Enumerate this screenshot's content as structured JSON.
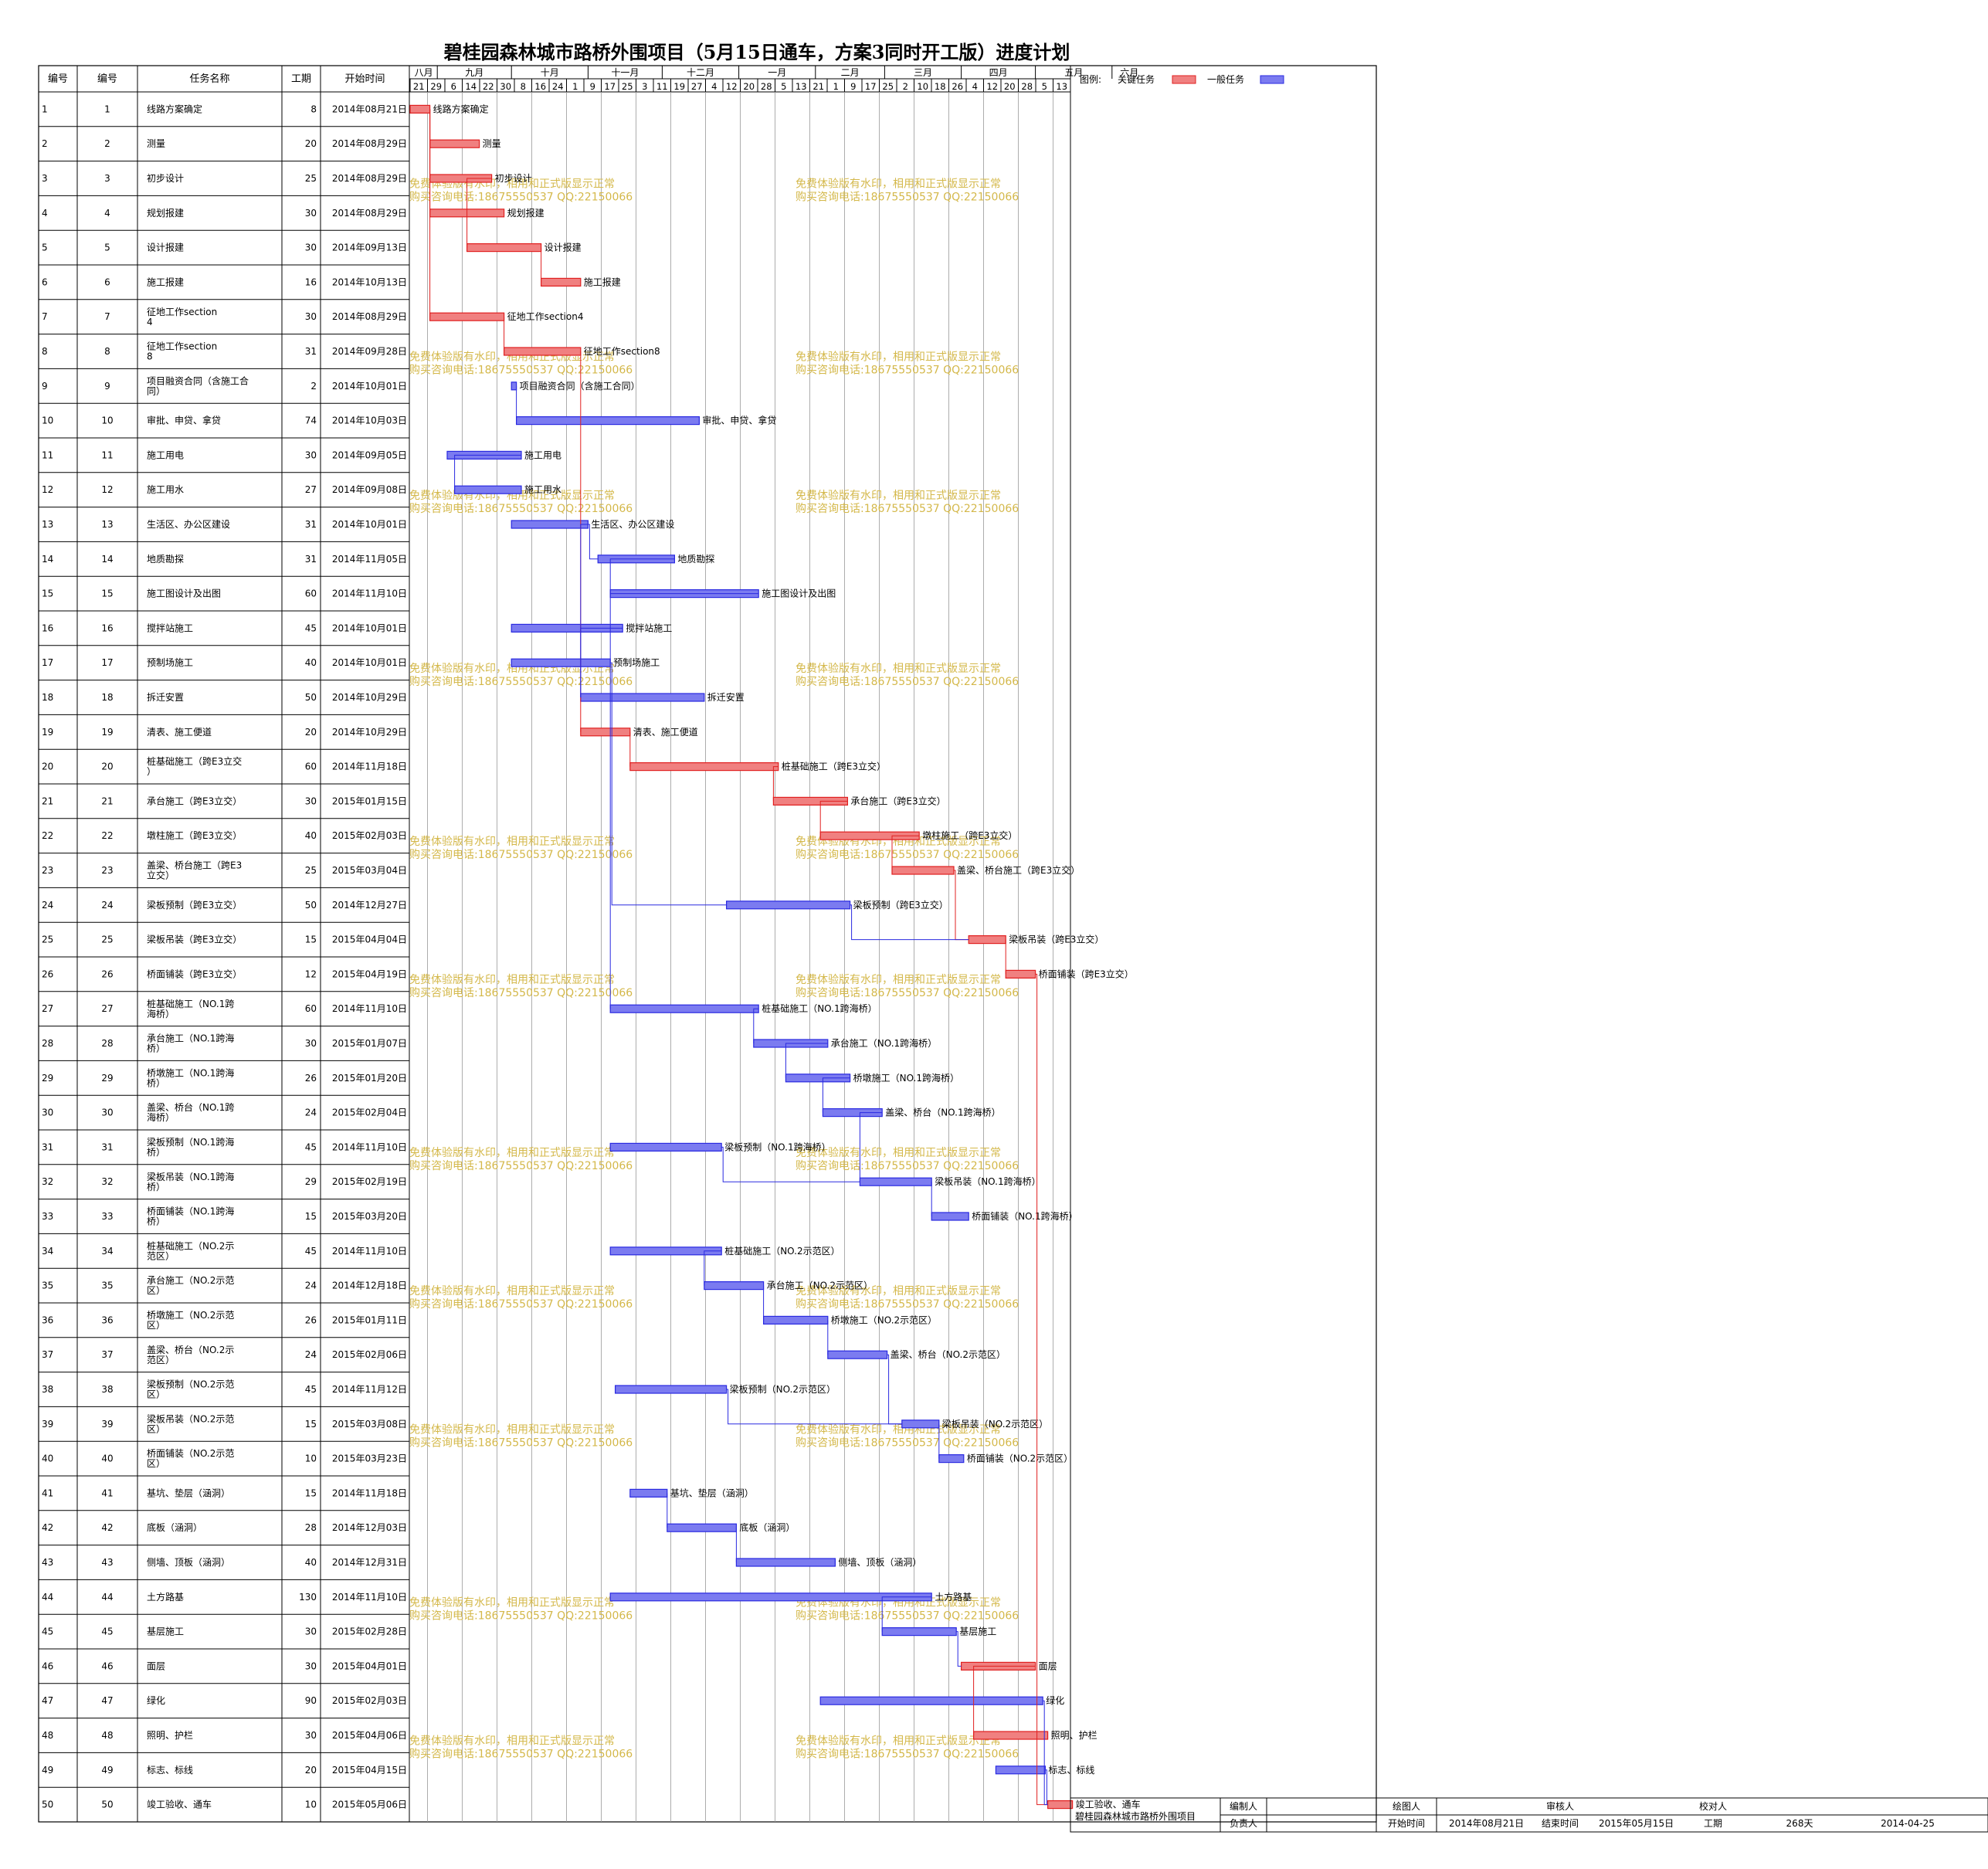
{
  "title": "碧桂园森林城市路桥外围项目（5月15日通车，方案3同时开工版）进度计划",
  "columns": [
    "编号",
    "编号",
    "任务名称",
    "工期",
    "开始时间"
  ],
  "legend": {
    "label": "图例:",
    "critical": "关键任务",
    "normal": "一般任务"
  },
  "colors": {
    "critical": "#f08080",
    "normal": "#7b7bf0",
    "critical_line": "#e02020",
    "normal_line": "#2a2ae0",
    "watermark": "#d4b84a"
  },
  "watermark": {
    "line1": "免费体验版有水印，相用和正式版显示正常",
    "line2": "购买咨询电话:18675550537 QQ:22150066"
  },
  "months": [
    "八月",
    "九月",
    "十月",
    "十一月",
    "十二月",
    "一月",
    "二月",
    "三月",
    "四月",
    "五月",
    "六月"
  ],
  "weeks": [
    "21",
    "29",
    "6",
    "14",
    "22",
    "30",
    "8",
    "16",
    "24",
    "1",
    "9",
    "17",
    "25",
    "3",
    "11",
    "19",
    "27",
    "4",
    "12",
    "20",
    "28",
    "5",
    "13",
    "21",
    "1",
    "9",
    "17",
    "25",
    "2",
    "10",
    "18",
    "26",
    "4",
    "12",
    "20",
    "28",
    "5",
    "13"
  ],
  "footer": {
    "project": "碧桂园森林城市路桥外围项目",
    "editor_label": "编制人",
    "owner_label": "负责人",
    "drawer_label": "绘图人",
    "reviewer_label": "审核人",
    "checker_label": "校对人",
    "start_label": "开始时间",
    "start_value": "2014年08月21日",
    "end_label": "结束时间",
    "end_value": "2015年05月15日",
    "duration_label": "工期",
    "duration_value": "268天",
    "date_value": "2014-04-25"
  },
  "chart_data": {
    "type": "gantt",
    "x_start": "2014-08-21",
    "tasks": [
      {
        "id": "1",
        "name": "线路方案确定",
        "dur": 8,
        "start": "2014年08月21日",
        "critical": true
      },
      {
        "id": "2",
        "name": "测量",
        "dur": 20,
        "start": "2014年08月29日",
        "critical": true
      },
      {
        "id": "3",
        "name": "初步设计",
        "dur": 25,
        "start": "2014年08月29日",
        "critical": true
      },
      {
        "id": "4",
        "name": "规划报建",
        "dur": 30,
        "start": "2014年08月29日",
        "critical": true
      },
      {
        "id": "5",
        "name": "设计报建",
        "dur": 30,
        "start": "2014年09月13日",
        "critical": true
      },
      {
        "id": "6",
        "name": "施工报建",
        "dur": 16,
        "start": "2014年10月13日",
        "critical": true
      },
      {
        "id": "7",
        "name": "征地工作section4",
        "dur": 30,
        "start": "2014年08月29日",
        "critical": true
      },
      {
        "id": "8",
        "name": "征地工作section8",
        "dur": 31,
        "start": "2014年09月28日",
        "critical": true
      },
      {
        "id": "9",
        "name": "项目融资合同（含施工合同）",
        "dur": 2,
        "start": "2014年10月01日",
        "critical": false
      },
      {
        "id": "10",
        "name": "审批、申贷、拿贷",
        "dur": 74,
        "start": "2014年10月03日",
        "critical": false
      },
      {
        "id": "11",
        "name": "施工用电",
        "dur": 30,
        "start": "2014年09月05日",
        "critical": false
      },
      {
        "id": "12",
        "name": "施工用水",
        "dur": 27,
        "start": "2014年09月08日",
        "critical": false
      },
      {
        "id": "13",
        "name": "生活区、办公区建设",
        "dur": 31,
        "start": "2014年10月01日",
        "critical": false
      },
      {
        "id": "14",
        "name": "地质勘探",
        "dur": 31,
        "start": "2014年11月05日",
        "critical": false
      },
      {
        "id": "15",
        "name": "施工图设计及出图",
        "dur": 60,
        "start": "2014年11月10日",
        "critical": false
      },
      {
        "id": "16",
        "name": "搅拌站施工",
        "dur": 45,
        "start": "2014年10月01日",
        "critical": false
      },
      {
        "id": "17",
        "name": "预制场施工",
        "dur": 40,
        "start": "2014年10月01日",
        "critical": false
      },
      {
        "id": "18",
        "name": "拆迁安置",
        "dur": 50,
        "start": "2014年10月29日",
        "critical": false
      },
      {
        "id": "19",
        "name": "清表、施工便道",
        "dur": 20,
        "start": "2014年10月29日",
        "critical": true
      },
      {
        "id": "20",
        "name": "桩基础施工（跨E3立交）",
        "dur": 60,
        "start": "2014年11月18日",
        "critical": true
      },
      {
        "id": "21",
        "name": "承台施工（跨E3立交）",
        "dur": 30,
        "start": "2015年01月15日",
        "critical": true
      },
      {
        "id": "22",
        "name": "墩柱施工（跨E3立交）",
        "dur": 40,
        "start": "2015年02月03日",
        "critical": true
      },
      {
        "id": "23",
        "name": "盖梁、桥台施工（跨E3立交）",
        "dur": 25,
        "start": "2015年03月04日",
        "critical": true
      },
      {
        "id": "24",
        "name": "梁板预制（跨E3立交）",
        "dur": 50,
        "start": "2014年12月27日",
        "critical": false
      },
      {
        "id": "25",
        "name": "梁板吊装（跨E3立交）",
        "dur": 15,
        "start": "2015年04月04日",
        "critical": true
      },
      {
        "id": "26",
        "name": "桥面铺装（跨E3立交）",
        "dur": 12,
        "start": "2015年04月19日",
        "critical": true
      },
      {
        "id": "27",
        "name": "桩基础施工（NO.1跨海桥）",
        "dur": 60,
        "start": "2014年11月10日",
        "critical": false
      },
      {
        "id": "28",
        "name": "承台施工（NO.1跨海桥）",
        "dur": 30,
        "start": "2015年01月07日",
        "critical": false
      },
      {
        "id": "29",
        "name": "桥墩施工（NO.1跨海桥）",
        "dur": 26,
        "start": "2015年01月20日",
        "critical": false
      },
      {
        "id": "30",
        "name": "盖梁、桥台（NO.1跨海桥）",
        "dur": 24,
        "start": "2015年02月04日",
        "critical": false
      },
      {
        "id": "31",
        "name": "梁板预制（NO.1跨海桥）",
        "dur": 45,
        "start": "2014年11月10日",
        "critical": false
      },
      {
        "id": "32",
        "name": "梁板吊装（NO.1跨海桥）",
        "dur": 29,
        "start": "2015年02月19日",
        "critical": false
      },
      {
        "id": "33",
        "name": "桥面铺装（NO.1跨海桥）",
        "dur": 15,
        "start": "2015年03月20日",
        "critical": false
      },
      {
        "id": "34",
        "name": "桩基础施工（NO.2示范区）",
        "dur": 45,
        "start": "2014年11月10日",
        "critical": false
      },
      {
        "id": "35",
        "name": "承台施工（NO.2示范区）",
        "dur": 24,
        "start": "2014年12月18日",
        "critical": false
      },
      {
        "id": "36",
        "name": "桥墩施工（NO.2示范区）",
        "dur": 26,
        "start": "2015年01月11日",
        "critical": false
      },
      {
        "id": "37",
        "name": "盖梁、桥台（NO.2示范区）",
        "dur": 24,
        "start": "2015年02月06日",
        "critical": false
      },
      {
        "id": "38",
        "name": "梁板预制（NO.2示范区）",
        "dur": 45,
        "start": "2014年11月12日",
        "critical": false
      },
      {
        "id": "39",
        "name": "梁板吊装（NO.2示范区）",
        "dur": 15,
        "start": "2015年03月08日",
        "critical": false
      },
      {
        "id": "40",
        "name": "桥面铺装（NO.2示范区）",
        "dur": 10,
        "start": "2015年03月23日",
        "critical": false
      },
      {
        "id": "41",
        "name": "基坑、垫层（涵洞）",
        "dur": 15,
        "start": "2014年11月18日",
        "critical": false
      },
      {
        "id": "42",
        "name": "底板（涵洞）",
        "dur": 28,
        "start": "2014年12月03日",
        "critical": false
      },
      {
        "id": "43",
        "name": "侧墙、顶板（涵洞）",
        "dur": 40,
        "start": "2014年12月31日",
        "critical": false
      },
      {
        "id": "44",
        "name": "土方路基",
        "dur": 130,
        "start": "2014年11月10日",
        "critical": false
      },
      {
        "id": "45",
        "name": "基层施工",
        "dur": 30,
        "start": "2015年02月28日",
        "critical": false
      },
      {
        "id": "46",
        "name": "面层",
        "dur": 30,
        "start": "2015年04月01日",
        "critical": true
      },
      {
        "id": "47",
        "name": "绿化",
        "dur": 90,
        "start": "2015年02月03日",
        "critical": false
      },
      {
        "id": "48",
        "name": "照明、护栏",
        "dur": 30,
        "start": "2015年04月06日",
        "critical": true
      },
      {
        "id": "49",
        "name": "标志、标线",
        "dur": 20,
        "start": "2015年04月15日",
        "critical": false
      },
      {
        "id": "50",
        "name": "竣工验收、通车",
        "dur": 10,
        "start": "2015年05月06日",
        "critical": true
      }
    ]
  }
}
